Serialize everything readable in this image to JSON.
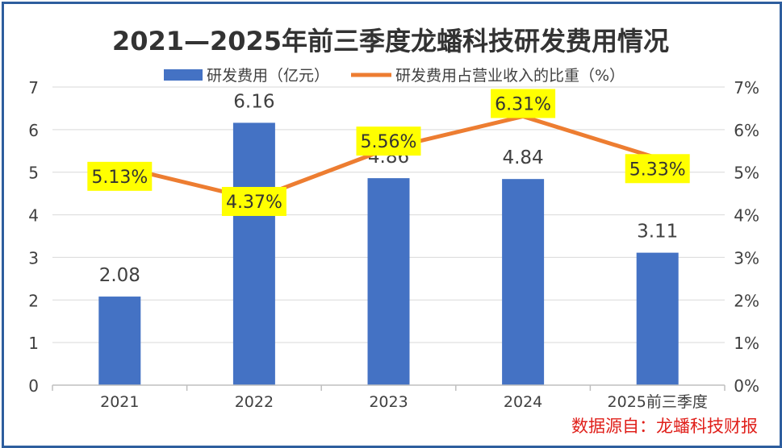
{
  "chart_data": {
    "type": "bar",
    "title": "2021—2025年前三季度龙蟠科技研发费用情况",
    "categories": [
      "2021",
      "2022",
      "2023",
      "2024",
      "2025前三季度"
    ],
    "series": [
      {
        "name": "研发费用（亿元）",
        "type": "bar",
        "axis": "left",
        "color": "#4472c4",
        "values": [
          2.08,
          6.16,
          4.86,
          4.84,
          3.11
        ],
        "labels": [
          "2.08",
          "6.16",
          "4.86",
          "4.84",
          "3.11"
        ]
      },
      {
        "name": "研发费用占营业收入的比重（%）",
        "type": "line",
        "axis": "right",
        "color": "#ed7d31",
        "values": [
          5.13,
          4.37,
          5.56,
          6.31,
          5.33
        ],
        "labels": [
          "5.13%",
          "4.37%",
          "5.56%",
          "6.31%",
          "5.33%"
        ]
      }
    ],
    "y_left": {
      "min": 0,
      "max": 7,
      "ticks": [
        "0",
        "1",
        "2",
        "3",
        "4",
        "5",
        "6",
        "7"
      ]
    },
    "y_right": {
      "min": 0,
      "max": 7,
      "ticks": [
        "0%",
        "1%",
        "2%",
        "3%",
        "4%",
        "5%",
        "6%",
        "7%"
      ]
    },
    "legend_position": "top-center",
    "grid": true,
    "label_highlight_color": "#ffff00",
    "source_note": "数据源自：龙蟠科技财报",
    "source_color": "#e0201b"
  }
}
